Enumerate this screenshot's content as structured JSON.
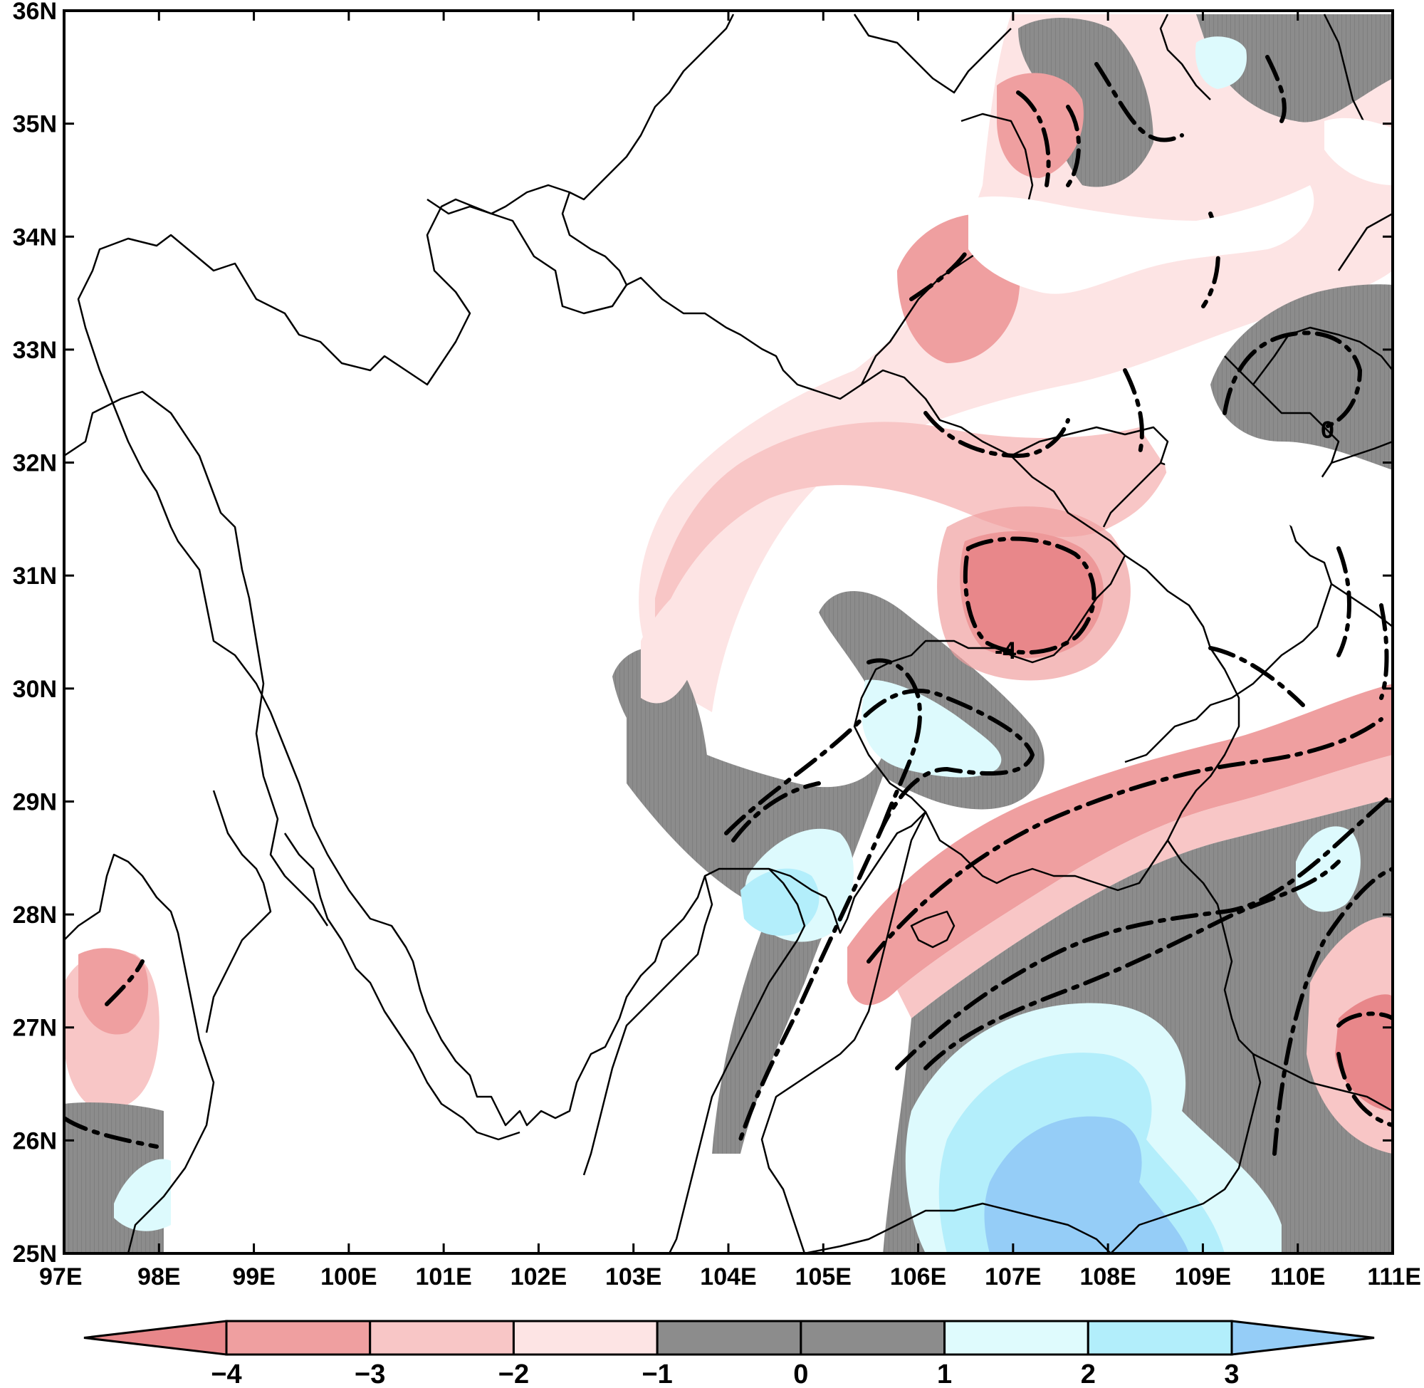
{
  "map": {
    "lon_range": [
      97,
      111
    ],
    "lat_range": [
      25,
      36
    ],
    "lon_ticks": [
      "97E",
      "98E",
      "99E",
      "100E",
      "101E",
      "102E",
      "103E",
      "104E",
      "105E",
      "106E",
      "107E",
      "108E",
      "109E",
      "110E",
      "111E"
    ],
    "lat_ticks": [
      "25N",
      "26N",
      "27N",
      "28N",
      "29N",
      "30N",
      "31N",
      "32N",
      "33N",
      "34N",
      "35N",
      "36N"
    ],
    "contour_labels": [
      "-4",
      "0"
    ]
  },
  "colorbar": {
    "labels": [
      "-4",
      "-3",
      "-2",
      "-1",
      "0",
      "1",
      "2",
      "3"
    ],
    "colors": [
      "#e8878a",
      "#ef9fa0",
      "#f8c6c6",
      "#fde4e4",
      "#8c8c8c",
      "#8c8c8c",
      "#dffbfd",
      "#b2eefb",
      "#95cdf7"
    ]
  },
  "colors": {
    "neg4": "#e8878a",
    "neg3": "#f19d9e",
    "neg2": "#f7c5c5",
    "neg1": "#fde4e4",
    "zero": "#8c8c8c",
    "pos1": "#ddfafd",
    "pos2": "#b3eefb",
    "pos3": "#95cdf7"
  }
}
